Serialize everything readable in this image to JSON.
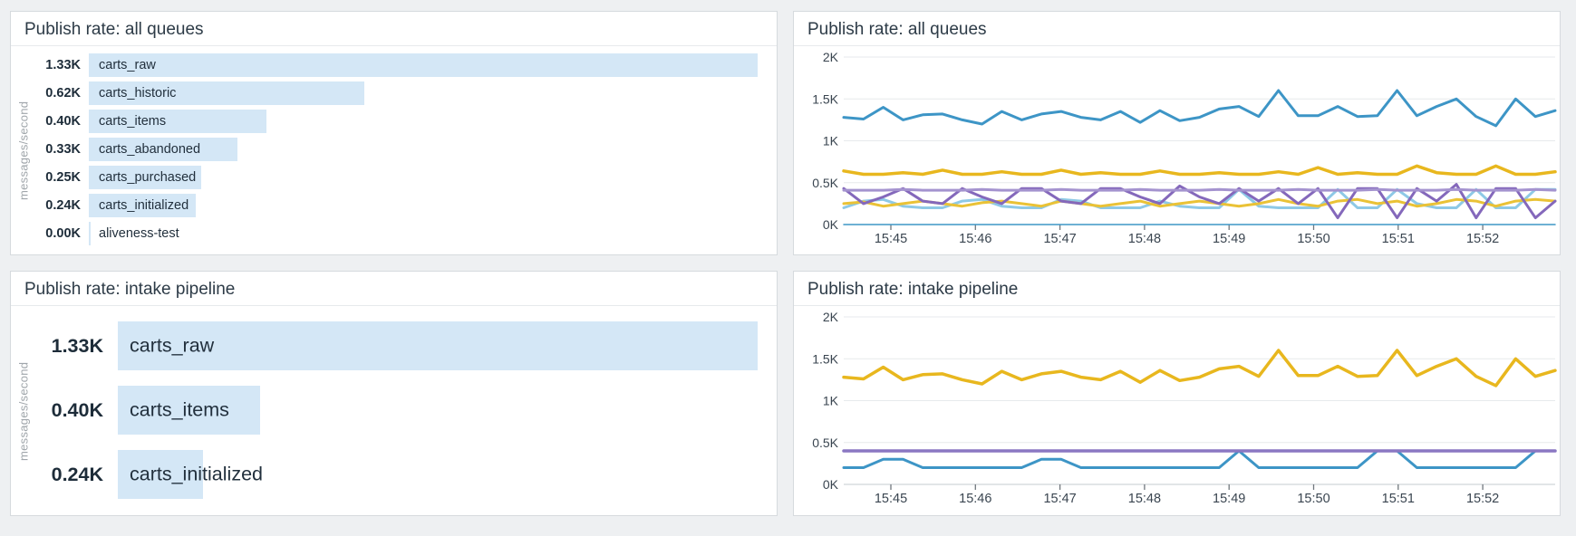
{
  "page": {
    "background": "#eef0f2",
    "panel_border": "#d6dade"
  },
  "unit": "messages/second",
  "chart_data": [
    {
      "id": "bar-all-queues",
      "type": "bar",
      "orientation": "horizontal",
      "title": "Publish rate: all queues",
      "unit_label": "messages/second",
      "bar_color": "#d4e7f6",
      "rows": [
        {
          "display": "1.33K",
          "label": "carts_raw",
          "value_k": 1.33,
          "bar_pct": 100
        },
        {
          "display": "0.62K",
          "label": "carts_historic",
          "value_k": 0.62,
          "bar_pct": 41.2
        },
        {
          "display": "0.40K",
          "label": "carts_items",
          "value_k": 0.4,
          "bar_pct": 26.6
        },
        {
          "display": "0.33K",
          "label": "carts_abandoned",
          "value_k": 0.33,
          "bar_pct": 22.2
        },
        {
          "display": "0.25K",
          "label": "carts_purchased",
          "value_k": 0.25,
          "bar_pct": 16.8
        },
        {
          "display": "0.24K",
          "label": "carts_initialized",
          "value_k": 0.24,
          "bar_pct": 16.0
        },
        {
          "display": "0.00K",
          "label": "aliveness-test",
          "value_k": 0.0,
          "bar_pct": 0.3
        }
      ]
    },
    {
      "id": "timeseries-all-queues",
      "type": "line",
      "title": "Publish rate: all queues",
      "ylabel_unit": "K messages/second",
      "y_max_k": 2,
      "y_ticks": [
        "0K",
        "0.5K",
        "1K",
        "1.5K",
        "2K"
      ],
      "x_ticks": [
        "15:45",
        "15:46",
        "15:47",
        "15:48",
        "15:49",
        "15:50",
        "15:51",
        "15:52"
      ],
      "grid": true,
      "legend": "none",
      "series": [
        {
          "name": "carts_purchased",
          "color": "#8ec9e6",
          "width": 3,
          "values_k": [
            0.2,
            0.28,
            0.3,
            0.22,
            0.2,
            0.2,
            0.28,
            0.3,
            0.22,
            0.2,
            0.2,
            0.3,
            0.28,
            0.2,
            0.2,
            0.2,
            0.28,
            0.22,
            0.2,
            0.2,
            0.42,
            0.22,
            0.2,
            0.2,
            0.2,
            0.42,
            0.2,
            0.2,
            0.42,
            0.25,
            0.2,
            0.2,
            0.42,
            0.2,
            0.2,
            0.42,
            0.42
          ]
        },
        {
          "name": "carts_initialized",
          "color": "#eac236",
          "width": 3,
          "values_k": [
            0.25,
            0.27,
            0.22,
            0.25,
            0.28,
            0.25,
            0.22,
            0.26,
            0.28,
            0.25,
            0.22,
            0.28,
            0.25,
            0.22,
            0.25,
            0.28,
            0.22,
            0.25,
            0.28,
            0.25,
            0.22,
            0.25,
            0.3,
            0.25,
            0.22,
            0.28,
            0.3,
            0.25,
            0.28,
            0.22,
            0.25,
            0.3,
            0.28,
            0.22,
            0.28,
            0.3,
            0.28
          ]
        },
        {
          "name": "carts_abandoned",
          "color": "#8468bb",
          "width": 3,
          "values_k": [
            0.43,
            0.25,
            0.33,
            0.43,
            0.28,
            0.25,
            0.43,
            0.33,
            0.25,
            0.43,
            0.43,
            0.28,
            0.25,
            0.43,
            0.43,
            0.33,
            0.25,
            0.46,
            0.33,
            0.25,
            0.43,
            0.28,
            0.43,
            0.25,
            0.43,
            0.08,
            0.43,
            0.43,
            0.08,
            0.43,
            0.28,
            0.48,
            0.08,
            0.43,
            0.43,
            0.08,
            0.28
          ]
        },
        {
          "name": "carts_items",
          "color": "#a493cf",
          "width": 3,
          "values_k": [
            0.41,
            0.41,
            0.41,
            0.42,
            0.41,
            0.41,
            0.41,
            0.42,
            0.41,
            0.41,
            0.41,
            0.42,
            0.41,
            0.41,
            0.41,
            0.42,
            0.41,
            0.41,
            0.41,
            0.42,
            0.41,
            0.41,
            0.41,
            0.42,
            0.41,
            0.41,
            0.41,
            0.42,
            0.41,
            0.41,
            0.41,
            0.42,
            0.41,
            0.41,
            0.41,
            0.42,
            0.41
          ]
        },
        {
          "name": "carts_historic",
          "color": "#e8b71e",
          "width": 3.5,
          "values_k": [
            0.64,
            0.6,
            0.6,
            0.62,
            0.6,
            0.65,
            0.6,
            0.6,
            0.63,
            0.6,
            0.6,
            0.65,
            0.6,
            0.62,
            0.6,
            0.6,
            0.64,
            0.6,
            0.6,
            0.62,
            0.6,
            0.6,
            0.63,
            0.6,
            0.68,
            0.6,
            0.62,
            0.6,
            0.6,
            0.7,
            0.62,
            0.6,
            0.6,
            0.7,
            0.6,
            0.6,
            0.63
          ]
        },
        {
          "name": "carts_raw",
          "color": "#3d95c6",
          "width": 3,
          "values_k": [
            1.28,
            1.26,
            1.4,
            1.25,
            1.31,
            1.32,
            1.25,
            1.2,
            1.35,
            1.25,
            1.32,
            1.35,
            1.28,
            1.25,
            1.35,
            1.22,
            1.36,
            1.24,
            1.28,
            1.38,
            1.41,
            1.29,
            1.6,
            1.3,
            1.3,
            1.41,
            1.29,
            1.3,
            1.6,
            1.3,
            1.41,
            1.5,
            1.29,
            1.18,
            1.5,
            1.29,
            1.36
          ]
        },
        {
          "name": "aliveness-test",
          "color": "#3d95c6",
          "width": 1.5,
          "values_k": [
            0,
            0,
            0,
            0,
            0,
            0,
            0,
            0,
            0,
            0,
            0,
            0,
            0,
            0,
            0,
            0,
            0,
            0,
            0,
            0,
            0,
            0,
            0,
            0,
            0,
            0,
            0,
            0,
            0,
            0,
            0,
            0,
            0,
            0,
            0,
            0,
            0
          ]
        }
      ]
    },
    {
      "id": "bar-intake-pipeline",
      "type": "bar",
      "orientation": "horizontal",
      "title": "Publish rate: intake pipeline",
      "unit_label": "messages/second",
      "bar_color": "#d4e7f6",
      "rows": [
        {
          "display": "1.33K",
          "label": "carts_raw",
          "value_k": 1.33,
          "bar_pct": 100
        },
        {
          "display": "0.40K",
          "label": "carts_items",
          "value_k": 0.4,
          "bar_pct": 22.2
        },
        {
          "display": "0.24K",
          "label": "carts_initialized",
          "value_k": 0.24,
          "bar_pct": 13.3
        }
      ]
    },
    {
      "id": "timeseries-intake-pipeline",
      "type": "line",
      "title": "Publish rate: intake pipeline",
      "ylabel_unit": "K messages/second",
      "y_max_k": 2,
      "y_ticks": [
        "0K",
        "0.5K",
        "1K",
        "1.5K",
        "2K"
      ],
      "x_ticks": [
        "15:45",
        "15:46",
        "15:47",
        "15:48",
        "15:49",
        "15:50",
        "15:51",
        "15:52"
      ],
      "grid": true,
      "legend": "none",
      "series": [
        {
          "name": "carts_initialized",
          "color": "#3d95c6",
          "width": 3,
          "values_k": [
            0.2,
            0.2,
            0.3,
            0.3,
            0.2,
            0.2,
            0.2,
            0.2,
            0.2,
            0.2,
            0.3,
            0.3,
            0.2,
            0.2,
            0.2,
            0.2,
            0.2,
            0.2,
            0.2,
            0.2,
            0.4,
            0.2,
            0.2,
            0.2,
            0.2,
            0.2,
            0.2,
            0.4,
            0.4,
            0.2,
            0.2,
            0.2,
            0.2,
            0.2,
            0.2,
            0.4,
            0.4
          ]
        },
        {
          "name": "carts_items",
          "color": "#8a77c2",
          "width": 3.5,
          "values_k": [
            0.4,
            0.4,
            0.4,
            0.4,
            0.4,
            0.4,
            0.4,
            0.4,
            0.4,
            0.4,
            0.4,
            0.4,
            0.4,
            0.4,
            0.4,
            0.4,
            0.4,
            0.4,
            0.4,
            0.4,
            0.4,
            0.4,
            0.4,
            0.4,
            0.4,
            0.4,
            0.4,
            0.4,
            0.4,
            0.4,
            0.4,
            0.4,
            0.4,
            0.4,
            0.4,
            0.4,
            0.4
          ]
        },
        {
          "name": "carts_raw",
          "color": "#e8b71e",
          "width": 3.5,
          "values_k": [
            1.28,
            1.26,
            1.4,
            1.25,
            1.31,
            1.32,
            1.25,
            1.2,
            1.35,
            1.25,
            1.32,
            1.35,
            1.28,
            1.25,
            1.35,
            1.22,
            1.36,
            1.24,
            1.28,
            1.38,
            1.41,
            1.29,
            1.6,
            1.3,
            1.3,
            1.41,
            1.29,
            1.3,
            1.6,
            1.3,
            1.41,
            1.5,
            1.29,
            1.18,
            1.5,
            1.29,
            1.36
          ]
        }
      ]
    }
  ]
}
